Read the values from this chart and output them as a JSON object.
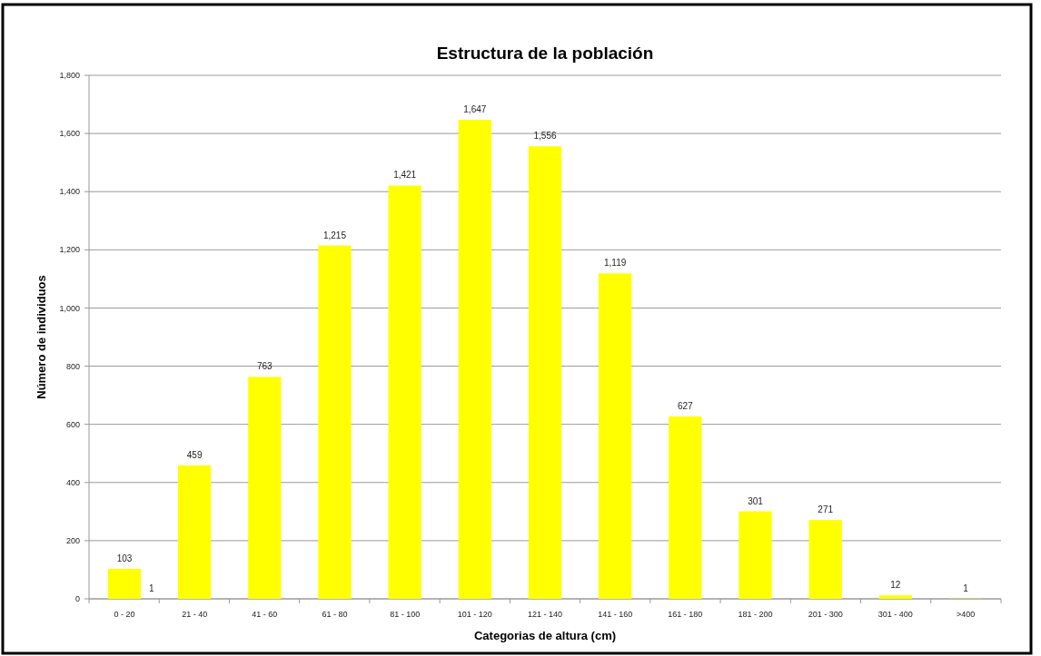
{
  "chart_data": {
    "type": "bar",
    "title": "Estructura de la población",
    "xlabel": "Categorias de altura (cm)",
    "ylabel": "Número de individuos",
    "categories": [
      "0 - 20",
      "21 - 40",
      "41 - 60",
      "61 - 80",
      "81 - 100",
      "101 - 120",
      "121 - 140",
      "141 - 160",
      "161 - 180",
      "181 - 200",
      "201 - 300",
      "301 - 400",
      ">400"
    ],
    "values": [
      103,
      459,
      763,
      1215,
      1421,
      1647,
      1556,
      1119,
      627,
      301,
      271,
      12,
      1
    ],
    "value_labels": [
      "103",
      "459",
      "763",
      "1,215",
      "1,421",
      "1,647",
      "1,556",
      "1,119",
      "627",
      "301",
      "271",
      "12",
      "1"
    ],
    "color": "#ffff00",
    "ylim": [
      0,
      1800
    ],
    "yticks": [
      0,
      {
        "value": 200,
        "label": "200"
      },
      400,
      600,
      800,
      {
        "value": 1000,
        "label": "1,000"
      },
      {
        "value": 1200,
        "label": "1,200"
      },
      {
        "value": 1400,
        "label": "1,400"
      },
      {
        "value": 1600,
        "label": "1,600"
      },
      {
        "value": 1800,
        "label": "1,800"
      }
    ],
    "grid": "y",
    "annotations": [
      {
        "text": "1",
        "x": "0 - 20",
        "y": 1
      }
    ]
  }
}
